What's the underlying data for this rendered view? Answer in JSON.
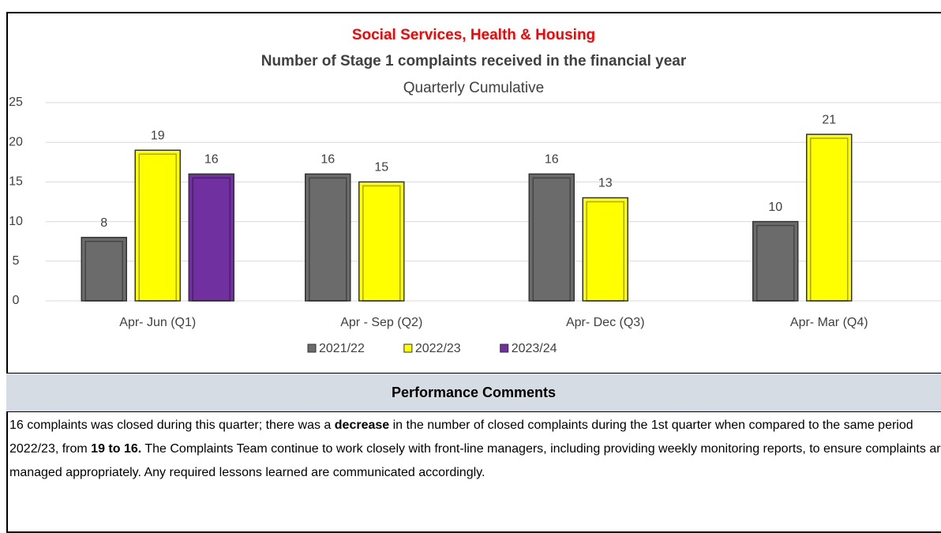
{
  "chart_data": {
    "type": "bar",
    "title": "Social Services, Health & Housing",
    "subtitle": "Number of Stage 1 complaints received in the financial year",
    "subtitle2": "Quarterly Cumulative",
    "categories": [
      "Apr- Jun  (Q1)",
      "Apr - Sep  (Q2)",
      "Apr- Dec  (Q3)",
      "Apr- Mar  (Q4)"
    ],
    "series": [
      {
        "name": "2021/22",
        "color": "#6b6b6b",
        "values": [
          8,
          16,
          16,
          10
        ]
      },
      {
        "name": "2022/23",
        "color": "#ffff00",
        "values": [
          19,
          15,
          13,
          21
        ]
      },
      {
        "name": "2023/24",
        "color": "#7030a0",
        "values": [
          16,
          null,
          null,
          null
        ]
      }
    ],
    "ylim": [
      0,
      25
    ],
    "yticks": [
      0,
      5,
      10,
      15,
      20,
      25
    ],
    "grid": true,
    "legend": "bottom"
  },
  "comments": {
    "heading": "Performance Comments",
    "runs": [
      {
        "text": "16 complaints was closed during this quarter; there was a ",
        "bold": false
      },
      {
        "text": "decrease",
        "bold": true
      },
      {
        "text": " in the number of closed complaints during the 1st quarter when compared to the same period 2022/23, from ",
        "bold": false
      },
      {
        "text": "19 to 16.",
        "bold": true
      },
      {
        "text": "  The Complaints Team continue to work closely with front-line managers, including providing weekly monitoring reports, to ensure complaints are managed appropriately.  Any required lessons learned are communicated accordingly.",
        "bold": false
      }
    ]
  }
}
